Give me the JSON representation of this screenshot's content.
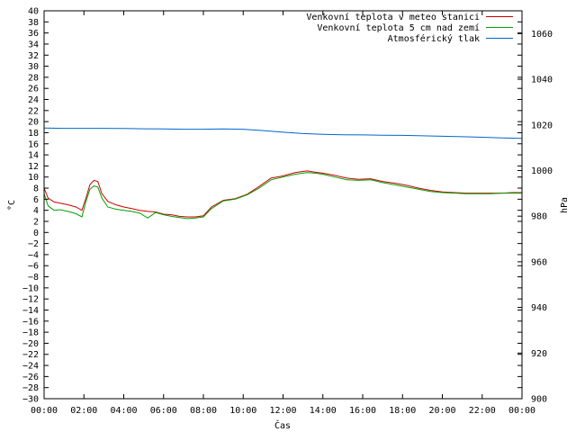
{
  "chart_data": {
    "type": "line",
    "title": "",
    "xlabel": "Čas",
    "ylabel_left": "°C",
    "ylabel_right": "hPa",
    "x_ticks": [
      "00:00",
      "02:00",
      "04:00",
      "06:00",
      "08:00",
      "10:00",
      "12:00",
      "14:00",
      "16:00",
      "18:00",
      "20:00",
      "22:00",
      "00:00"
    ],
    "xlim": [
      0,
      24
    ],
    "ylim_left": [
      -30,
      40
    ],
    "ylim_right": [
      900,
      1070
    ],
    "y_ticks_left": [
      40,
      38,
      36,
      34,
      32,
      30,
      28,
      26,
      24,
      22,
      20,
      18,
      16,
      14,
      12,
      10,
      8,
      6,
      4,
      2,
      0,
      -2,
      -4,
      -6,
      -8,
      -10,
      -12,
      -14,
      -16,
      -18,
      -20,
      -22,
      -24,
      -26,
      -28,
      -30
    ],
    "y_ticks_right": [
      1060,
      1040,
      1020,
      1000,
      980,
      960,
      940,
      920,
      900
    ],
    "grid": false,
    "legend_position": "top-right",
    "series": [
      {
        "name": "Venkovní teplota v meteo stanici",
        "color": "#cc0000",
        "axis": "left",
        "x": [
          0,
          0.2,
          0.5,
          0.8,
          1.2,
          1.6,
          1.9,
          2.1,
          2.3,
          2.5,
          2.7,
          2.9,
          3.2,
          3.6,
          4.0,
          4.4,
          4.8,
          5.2,
          5.6,
          6.0,
          6.4,
          6.8,
          7.2,
          7.6,
          8.0,
          8.4,
          9.0,
          9.6,
          10.2,
          10.8,
          11.4,
          12.0,
          12.6,
          13.2,
          13.6,
          14.0,
          14.6,
          15.2,
          15.8,
          16.4,
          17.0,
          17.6,
          18.2,
          18.8,
          19.4,
          20.0,
          20.6,
          21.2,
          21.8,
          22.4,
          23.0,
          23.5,
          24.0
        ],
        "y": [
          8,
          6.2,
          5.5,
          5.3,
          5.0,
          4.6,
          4.0,
          6.2,
          8.6,
          9.4,
          9.2,
          7.0,
          5.6,
          5.0,
          4.6,
          4.3,
          4.0,
          3.8,
          3.7,
          3.3,
          3.2,
          2.9,
          2.8,
          2.8,
          3.0,
          4.6,
          5.8,
          6.1,
          6.9,
          8.3,
          9.8,
          10.2,
          10.8,
          11.1,
          10.9,
          10.7,
          10.3,
          9.8,
          9.6,
          9.7,
          9.2,
          8.9,
          8.5,
          8.0,
          7.6,
          7.3,
          7.2,
          7.1,
          7.1,
          7.1,
          7.1,
          7.2,
          7.2
        ]
      },
      {
        "name": "Venkovní teplota 5 cm nad zemí",
        "color": "#00a000",
        "axis": "left",
        "x": [
          0,
          0.2,
          0.5,
          0.8,
          1.2,
          1.6,
          1.9,
          2.1,
          2.3,
          2.5,
          2.7,
          2.9,
          3.2,
          3.6,
          4.0,
          4.4,
          4.8,
          5.2,
          5.6,
          6.0,
          6.4,
          6.8,
          7.2,
          7.6,
          8.0,
          8.4,
          9.0,
          9.6,
          10.2,
          10.8,
          11.4,
          12.0,
          12.6,
          13.2,
          13.6,
          14.0,
          14.6,
          15.2,
          15.8,
          16.4,
          17.0,
          17.6,
          18.2,
          18.8,
          19.4,
          20.0,
          20.6,
          21.2,
          21.8,
          22.4,
          23.0,
          23.5,
          24.0
        ],
        "y": [
          7.0,
          4.8,
          4.0,
          4.1,
          3.8,
          3.4,
          2.8,
          5.6,
          7.8,
          8.4,
          8.2,
          6.2,
          4.6,
          4.2,
          4.0,
          3.8,
          3.5,
          2.6,
          3.6,
          3.2,
          2.9,
          2.7,
          2.5,
          2.6,
          2.8,
          4.3,
          5.7,
          6.0,
          6.8,
          8.0,
          9.5,
          10.0,
          10.5,
          10.8,
          10.7,
          10.5,
          10.0,
          9.5,
          9.4,
          9.5,
          9.0,
          8.6,
          8.2,
          7.8,
          7.4,
          7.2,
          7.1,
          7.0,
          7.0,
          7.0,
          7.1,
          7.1,
          7.1
        ]
      },
      {
        "name": "Atmosférický tlak",
        "color": "#0066cc",
        "axis": "right",
        "x": [
          0,
          1,
          2,
          3,
          4,
          5,
          6,
          7,
          8,
          9,
          10,
          11,
          12,
          13,
          14,
          15,
          16,
          17,
          18,
          19,
          20,
          21,
          22,
          23,
          24
        ],
        "y": [
          1018.6,
          1018.5,
          1018.5,
          1018.5,
          1018.4,
          1018.3,
          1018.2,
          1018.1,
          1018.1,
          1018.2,
          1018.1,
          1017.5,
          1016.8,
          1016.2,
          1015.9,
          1015.7,
          1015.6,
          1015.5,
          1015.4,
          1015.2,
          1015.0,
          1014.8,
          1014.6,
          1014.3,
          1014.1
        ]
      }
    ]
  }
}
